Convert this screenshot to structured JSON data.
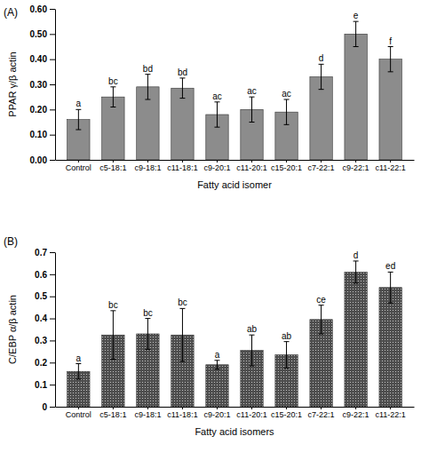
{
  "chart_data": [
    {
      "type": "bar",
      "title": "(A)",
      "y_label": "PPAR γ/β actin",
      "x_label": "Fatty acid isomer",
      "categories": [
        "Control",
        "c5-18:1",
        "c9-18:1",
        "c11-18:1",
        "c9-20:1",
        "c11-20:1",
        "c15-20:1",
        "c7-22:1",
        "c9-22:1",
        "c11-22:1"
      ],
      "values": [
        0.16,
        0.25,
        0.29,
        0.285,
        0.18,
        0.2,
        0.19,
        0.33,
        0.5,
        0.4
      ],
      "errors": [
        0.04,
        0.04,
        0.05,
        0.04,
        0.05,
        0.05,
        0.05,
        0.05,
        0.05,
        0.05
      ],
      "annotations": [
        "a",
        "bc",
        "bd",
        "bd",
        "ac",
        "ac",
        "ac",
        "d",
        "e",
        "f"
      ],
      "color": "#8c8c8c",
      "ylim": [
        0,
        0.6
      ],
      "yticks": [
        {
          "value": 0,
          "label": "0.00"
        },
        {
          "value": 0.1,
          "label": "0.10"
        },
        {
          "value": 0.2,
          "label": "0.20"
        },
        {
          "value": 0.3,
          "label": "0.30"
        },
        {
          "value": 0.4,
          "label": "0.40"
        },
        {
          "value": 0.5,
          "label": "0.50"
        },
        {
          "value": 0.6,
          "label": "0.60"
        }
      ]
    },
    {
      "type": "bar",
      "title": "(B)",
      "y_label": "C/EBP α/β actin",
      "x_label": "Fatty acid isomers",
      "categories": [
        "Control",
        "c5-18:1",
        "c9-18:1",
        "c11-18:1",
        "c9-20:1",
        "c11-20:1",
        "c15-20:1",
        "c7-22:1",
        "c9-22:1",
        "c11-22:1"
      ],
      "values": [
        0.16,
        0.325,
        0.33,
        0.325,
        0.19,
        0.255,
        0.235,
        0.395,
        0.61,
        0.54
      ],
      "errors": [
        0.035,
        0.11,
        0.07,
        0.12,
        0.02,
        0.07,
        0.06,
        0.065,
        0.05,
        0.07
      ],
      "annotations": [
        "a",
        "bc",
        "bc",
        "bc",
        "a",
        "ab",
        "ab",
        "ce",
        "d",
        "ed"
      ],
      "color": "#4d4d4d",
      "ylim": [
        0,
        0.7
      ],
      "yticks": [
        0,
        0.1,
        0.2,
        0.3,
        0.4,
        0.5,
        0.6,
        0.7
      ]
    }
  ]
}
